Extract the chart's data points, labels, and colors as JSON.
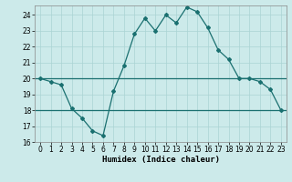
{
  "title": "",
  "xlabel": "Humidex (Indice chaleur)",
  "xlim": [
    -0.5,
    23.5
  ],
  "ylim": [
    16,
    24.6
  ],
  "yticks": [
    16,
    17,
    18,
    19,
    20,
    21,
    22,
    23,
    24
  ],
  "xticks": [
    0,
    1,
    2,
    3,
    4,
    5,
    6,
    7,
    8,
    9,
    10,
    11,
    12,
    13,
    14,
    15,
    16,
    17,
    18,
    19,
    20,
    21,
    22,
    23
  ],
  "bg_color": "#cceaea",
  "line_color": "#1a7070",
  "line1_x": [
    0,
    1,
    2,
    3,
    4,
    5,
    6,
    7,
    8,
    9,
    10,
    11,
    12,
    13,
    14,
    15,
    16,
    17,
    18,
    19,
    20,
    21,
    22,
    23
  ],
  "line1_y": [
    20.0,
    19.8,
    19.6,
    18.1,
    17.5,
    16.7,
    16.4,
    19.2,
    20.8,
    22.8,
    23.8,
    23.0,
    24.0,
    23.5,
    24.5,
    24.2,
    23.2,
    21.8,
    21.2,
    20.0,
    20.0,
    19.8,
    19.3,
    18.0
  ],
  "line2_y": 20.0,
  "line3_y": 18.0,
  "grid_color": "#aad4d4",
  "spine_color": "#888888"
}
